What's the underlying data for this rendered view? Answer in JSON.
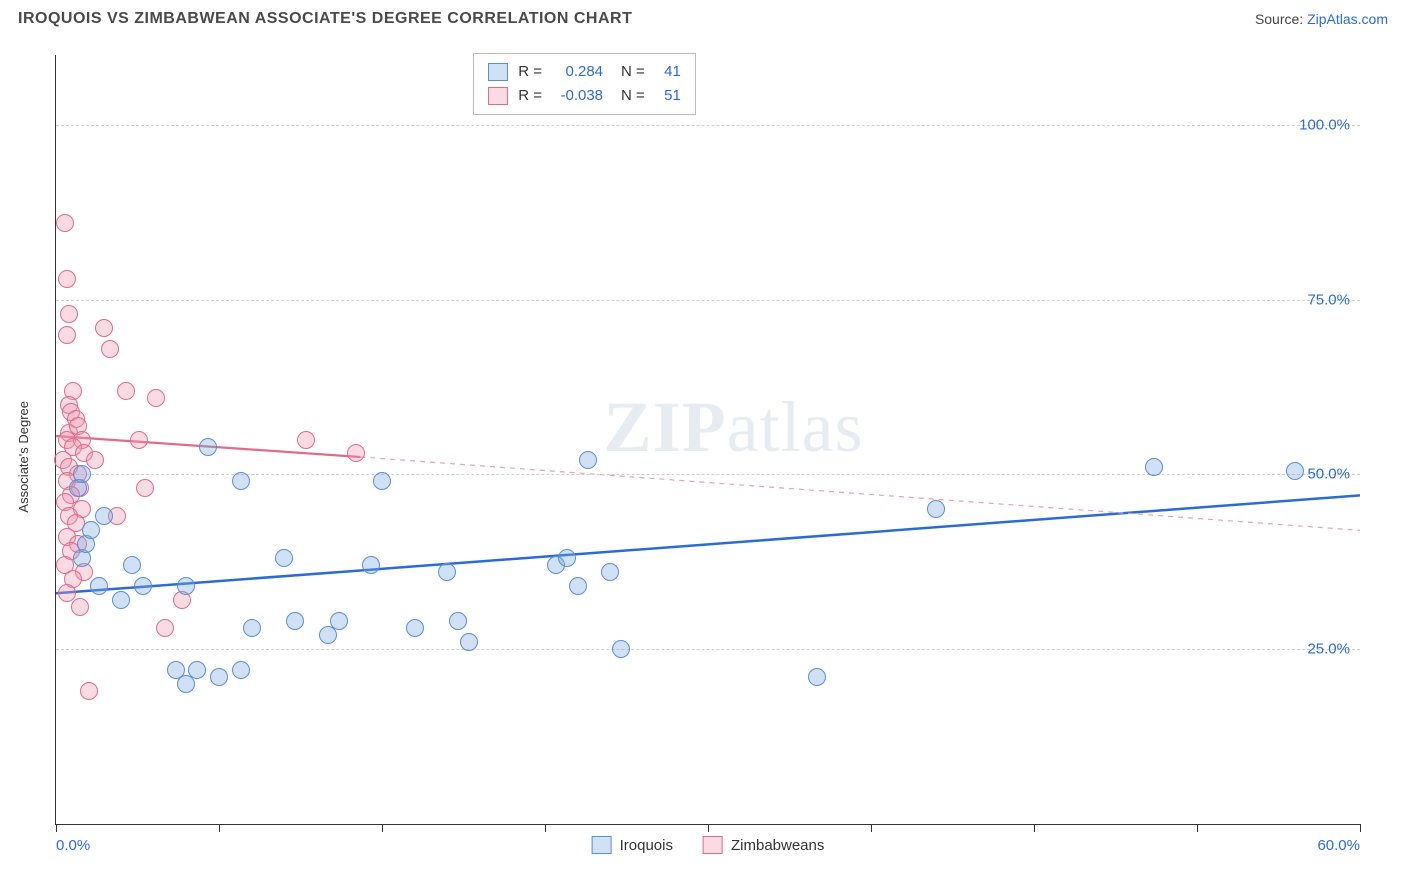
{
  "title": "IROQUOIS VS ZIMBABWEAN ASSOCIATE'S DEGREE CORRELATION CHART",
  "source_label": "Source:",
  "source_name": "ZipAtlas.com",
  "watermark_prefix": "ZIP",
  "watermark_suffix": "atlas",
  "ylabel": "Associate's Degree",
  "chart": {
    "type": "scatter",
    "background_color": "#ffffff",
    "grid_color": "#cfcfcf",
    "axis_color": "#333333",
    "xlim": [
      0,
      60
    ],
    "ylim": [
      0,
      110
    ],
    "x_ticks": [
      0,
      7.5,
      15,
      22.5,
      30,
      37.5,
      45,
      52.5,
      60
    ],
    "x_tick_labels": {
      "0": "0.0%",
      "60": "60.0%"
    },
    "y_gridlines": [
      25,
      50,
      75,
      100
    ],
    "y_tick_labels": {
      "25": "25.0%",
      "50": "50.0%",
      "75": "75.0%",
      "100": "100.0%"
    },
    "point_radius": 9,
    "point_stroke_width": 1.4,
    "series": [
      {
        "name": "Iroquois",
        "fill": "rgba(120,165,225,0.35)",
        "stroke": "#5a8fd6",
        "r_value": "0.284",
        "n_value": "41",
        "trend": {
          "solid": {
            "x1": 0,
            "y1": 33,
            "x2": 60,
            "y2": 47,
            "color": "#2b6cd4",
            "width": 2.5
          }
        },
        "points": [
          [
            1.0,
            48
          ],
          [
            1.2,
            50
          ],
          [
            1.2,
            38
          ],
          [
            1.4,
            40
          ],
          [
            1.6,
            42
          ],
          [
            2.0,
            34
          ],
          [
            2.2,
            44
          ],
          [
            3.0,
            32
          ],
          [
            3.5,
            37
          ],
          [
            4.0,
            34
          ],
          [
            5.5,
            22
          ],
          [
            6.0,
            34
          ],
          [
            6.0,
            20
          ],
          [
            6.5,
            22
          ],
          [
            7.0,
            54
          ],
          [
            7.5,
            21
          ],
          [
            8.5,
            22
          ],
          [
            8.5,
            49
          ],
          [
            9.0,
            28
          ],
          [
            10.5,
            38
          ],
          [
            11.0,
            29
          ],
          [
            12.5,
            27
          ],
          [
            13.0,
            29
          ],
          [
            14.5,
            37
          ],
          [
            15.0,
            49
          ],
          [
            16.5,
            28
          ],
          [
            18.0,
            36
          ],
          [
            18.5,
            29
          ],
          [
            19.0,
            26
          ],
          [
            23.0,
            37
          ],
          [
            23.5,
            38
          ],
          [
            24.0,
            34
          ],
          [
            24.5,
            52
          ],
          [
            25.5,
            36
          ],
          [
            26.0,
            25
          ],
          [
            35.0,
            21
          ],
          [
            40.5,
            45
          ],
          [
            50.5,
            51
          ],
          [
            57.0,
            50.5
          ]
        ]
      },
      {
        "name": "Zimbabweans",
        "fill": "rgba(240,150,175,0.35)",
        "stroke": "#e06c8c",
        "r_value": "-0.038",
        "n_value": "51",
        "trend": {
          "solid": {
            "x1": 0,
            "y1": 55.5,
            "x2": 14,
            "y2": 52.5,
            "color": "#e06c8c",
            "width": 2.2
          },
          "dashed": {
            "x1": 14,
            "y1": 52.5,
            "x2": 60,
            "y2": 42,
            "color": "#e9a0b2",
            "width": 1.2,
            "dash": "5 5"
          }
        },
        "points": [
          [
            0.4,
            86
          ],
          [
            0.5,
            78
          ],
          [
            0.6,
            73
          ],
          [
            0.5,
            70
          ],
          [
            0.8,
            62
          ],
          [
            0.6,
            60
          ],
          [
            0.7,
            59
          ],
          [
            0.9,
            58
          ],
          [
            0.6,
            56
          ],
          [
            1.0,
            57
          ],
          [
            0.5,
            55
          ],
          [
            1.2,
            55
          ],
          [
            0.8,
            54
          ],
          [
            0.3,
            52
          ],
          [
            1.3,
            53
          ],
          [
            0.6,
            51
          ],
          [
            1.0,
            50
          ],
          [
            0.5,
            49
          ],
          [
            1.1,
            48
          ],
          [
            0.7,
            47
          ],
          [
            0.4,
            46
          ],
          [
            1.2,
            45
          ],
          [
            0.6,
            44
          ],
          [
            0.9,
            43
          ],
          [
            0.5,
            41
          ],
          [
            1.0,
            40
          ],
          [
            0.7,
            39
          ],
          [
            0.4,
            37
          ],
          [
            1.3,
            36
          ],
          [
            0.8,
            35
          ],
          [
            0.5,
            33
          ],
          [
            1.1,
            31
          ],
          [
            1.5,
            19
          ],
          [
            1.8,
            52
          ],
          [
            2.2,
            71
          ],
          [
            2.5,
            68
          ],
          [
            2.8,
            44
          ],
          [
            3.2,
            62
          ],
          [
            3.8,
            55
          ],
          [
            4.1,
            48
          ],
          [
            4.6,
            61
          ],
          [
            5.0,
            28
          ],
          [
            5.8,
            32
          ],
          [
            11.5,
            55
          ],
          [
            13.8,
            53
          ]
        ]
      }
    ]
  },
  "stats_legend": {
    "r_label": "R =",
    "n_label": "N ="
  },
  "bottom_legend": {
    "items": [
      "Iroquois",
      "Zimbabweans"
    ]
  }
}
